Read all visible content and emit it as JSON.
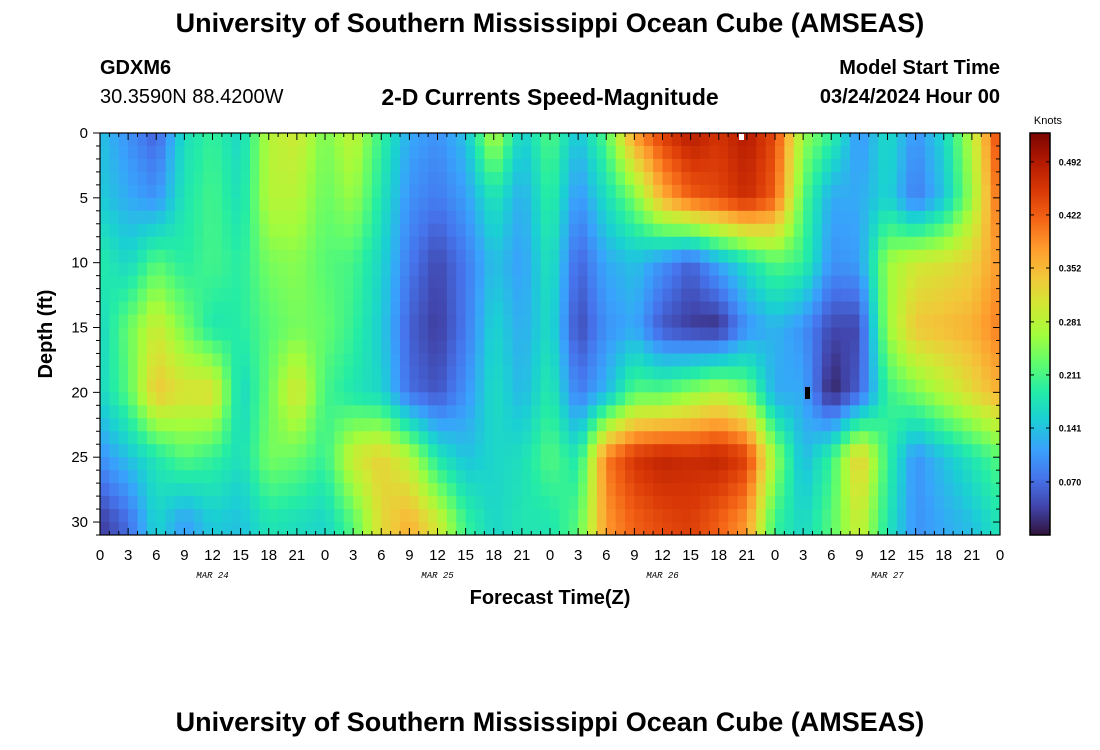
{
  "header": {
    "title": "University of Southern Mississippi Ocean Cube (AMSEAS)",
    "station": "GDXM6",
    "coords": "30.3590N  88.4200W",
    "subtitle": "2-D Currents Speed-Magnitude",
    "model_start_label": "Model Start Time",
    "model_start_time": "03/24/2024 Hour 00"
  },
  "footer": {
    "title": "University of Southern Mississippi Ocean Cube (AMSEAS)"
  },
  "colors": {
    "scale": [
      "#30123b",
      "#4145ab",
      "#4675ed",
      "#39a2fc",
      "#1bcfd4",
      "#24eca6",
      "#61fc6c",
      "#a4fc3b",
      "#d1e834",
      "#f3c63a",
      "#fe9b2d",
      "#f36315",
      "#d93806",
      "#b11901",
      "#7a0402"
    ]
  },
  "chart_data": {
    "type": "heatmap",
    "xlabel": "Forecast Time(Z)",
    "ylabel": "Depth (ft)",
    "colorbar_label": "Knots",
    "colorbar_ticks": [
      "0.492",
      "0.422",
      "0.352",
      "0.281",
      "0.211",
      "0.141",
      "0.070"
    ],
    "colorbar_range": [
      0.0,
      0.53
    ],
    "x_tick_labels": [
      "0",
      "3",
      "6",
      "9",
      "12",
      "15",
      "18",
      "21",
      "0",
      "3",
      "6",
      "9",
      "12",
      "15",
      "18",
      "21",
      "0",
      "3",
      "6",
      "9",
      "12",
      "15",
      "18",
      "21",
      "0",
      "3",
      "6",
      "9",
      "12",
      "15",
      "18",
      "21",
      "0"
    ],
    "x_range_hours": [
      0,
      96
    ],
    "date_labels": [
      {
        "label": "MAR 24",
        "hour": 12
      },
      {
        "label": "MAR 25",
        "hour": 36
      },
      {
        "label": "MAR 26",
        "hour": 60
      },
      {
        "label": "MAR 27",
        "hour": 84
      }
    ],
    "y_tick_labels": [
      "0",
      "5",
      "10",
      "15",
      "20",
      "25",
      "30"
    ],
    "y_tick_values": [
      0,
      5,
      10,
      15,
      20,
      25,
      30
    ],
    "y_range_ft": [
      0,
      31
    ],
    "depths_ft": [
      0,
      5,
      10,
      15,
      20,
      25,
      30
    ],
    "times_hours": [
      0,
      3,
      6,
      9,
      12,
      15,
      18,
      21,
      24,
      27,
      30,
      33,
      36,
      39,
      42,
      45,
      48,
      51,
      54,
      57,
      60,
      63,
      66,
      69,
      72,
      75,
      78,
      81,
      84,
      87,
      90,
      93,
      96
    ],
    "speed_knots": [
      [
        0.14,
        0.1,
        0.06,
        0.17,
        0.2,
        0.16,
        0.28,
        0.3,
        0.24,
        0.29,
        0.2,
        0.12,
        0.1,
        0.14,
        0.28,
        0.15,
        0.22,
        0.14,
        0.22,
        0.38,
        0.45,
        0.49,
        0.46,
        0.49,
        0.44,
        0.26,
        0.2,
        0.1,
        0.17,
        0.1,
        0.16,
        0.28,
        0.45
      ],
      [
        0.15,
        0.12,
        0.1,
        0.18,
        0.21,
        0.17,
        0.28,
        0.28,
        0.23,
        0.26,
        0.18,
        0.1,
        0.08,
        0.11,
        0.18,
        0.12,
        0.2,
        0.1,
        0.17,
        0.24,
        0.36,
        0.42,
        0.44,
        0.47,
        0.42,
        0.22,
        0.12,
        0.12,
        0.16,
        0.08,
        0.14,
        0.26,
        0.42
      ],
      [
        0.19,
        0.16,
        0.22,
        0.19,
        0.21,
        0.19,
        0.24,
        0.25,
        0.22,
        0.21,
        0.16,
        0.08,
        0.04,
        0.08,
        0.14,
        0.11,
        0.18,
        0.06,
        0.12,
        0.14,
        0.1,
        0.06,
        0.12,
        0.17,
        0.22,
        0.2,
        0.1,
        0.11,
        0.26,
        0.3,
        0.31,
        0.33,
        0.38
      ],
      [
        0.16,
        0.23,
        0.3,
        0.24,
        0.18,
        0.19,
        0.22,
        0.24,
        0.23,
        0.2,
        0.15,
        0.06,
        0.03,
        0.08,
        0.16,
        0.12,
        0.17,
        0.04,
        0.1,
        0.12,
        0.05,
        0.03,
        0.02,
        0.1,
        0.13,
        0.1,
        0.04,
        0.04,
        0.26,
        0.34,
        0.35,
        0.36,
        0.4
      ],
      [
        0.16,
        0.22,
        0.34,
        0.31,
        0.32,
        0.16,
        0.23,
        0.31,
        0.21,
        0.18,
        0.16,
        0.07,
        0.05,
        0.1,
        0.17,
        0.13,
        0.19,
        0.08,
        0.13,
        0.22,
        0.22,
        0.25,
        0.28,
        0.24,
        0.12,
        0.12,
        0.01,
        0.06,
        0.2,
        0.24,
        0.28,
        0.32,
        0.36
      ],
      [
        0.1,
        0.14,
        0.18,
        0.22,
        0.2,
        0.17,
        0.24,
        0.23,
        0.2,
        0.3,
        0.33,
        0.28,
        0.18,
        0.14,
        0.16,
        0.17,
        0.22,
        0.18,
        0.4,
        0.46,
        0.48,
        0.47,
        0.48,
        0.45,
        0.26,
        0.13,
        0.2,
        0.34,
        0.2,
        0.1,
        0.14,
        0.18,
        0.22
      ],
      [
        0.03,
        0.07,
        0.16,
        0.11,
        0.15,
        0.14,
        0.18,
        0.17,
        0.16,
        0.22,
        0.32,
        0.36,
        0.3,
        0.2,
        0.16,
        0.18,
        0.18,
        0.22,
        0.38,
        0.42,
        0.44,
        0.45,
        0.42,
        0.38,
        0.2,
        0.16,
        0.22,
        0.3,
        0.18,
        0.1,
        0.12,
        0.14,
        0.18
      ]
    ],
    "annotations": [
      "white marker at top near 20Z MAR 26",
      "black marker near 03Z MAR 27 at 20 ft"
    ]
  }
}
